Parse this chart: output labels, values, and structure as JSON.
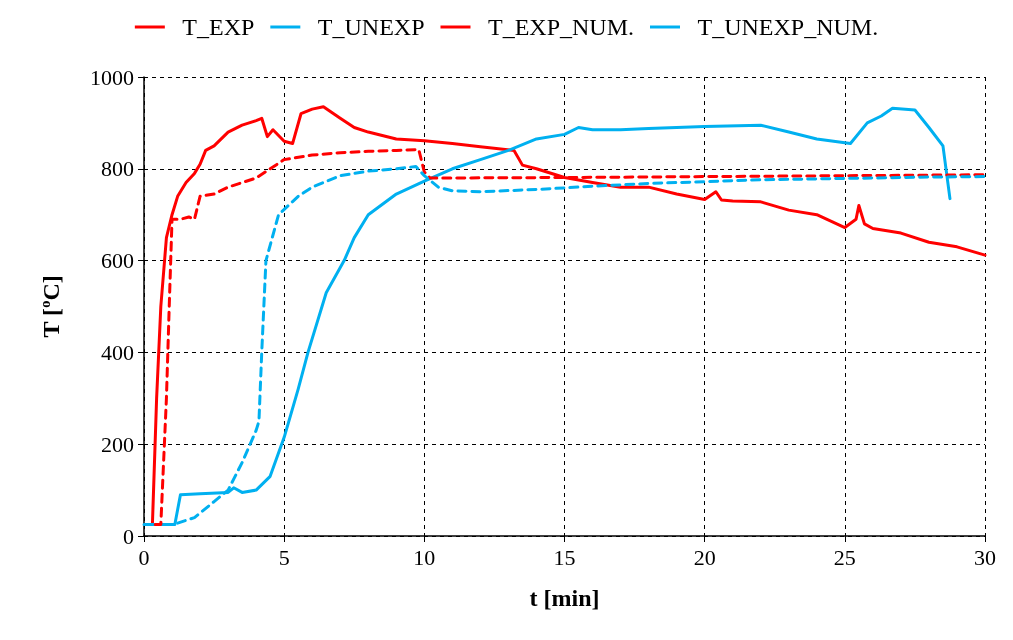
{
  "chart_data": {
    "type": "line",
    "xlabel": "t [min]",
    "ylabel": "T [$^{o}$C]",
    "xlim": [
      0,
      30
    ],
    "xticks": [
      0,
      5,
      10,
      15,
      20,
      25,
      30
    ],
    "ylim": [
      0,
      1000
    ],
    "yticks": [
      0,
      200,
      400,
      600,
      800,
      1000
    ],
    "grid": true,
    "legend": "top",
    "marker": "none",
    "series": [
      {
        "name": "T_EXP",
        "color": "#ff0000",
        "line_style": "solid",
        "x": [
          0.3,
          0.45,
          0.6,
          0.8,
          1.0,
          1.2,
          1.5,
          1.8,
          2.0,
          2.2,
          2.5,
          3.0,
          3.5,
          4.0,
          4.2,
          4.4,
          4.6,
          5.0,
          5.3,
          5.6,
          6.0,
          6.4,
          7.0,
          7.5,
          8.0,
          9.0,
          10.0,
          11.0,
          12.0,
          13.2,
          13.5,
          14.0,
          15.0,
          16.0,
          17.0,
          18.0,
          19.0,
          20.0,
          20.4,
          20.6,
          21.0,
          22.0,
          23.0,
          24.0,
          25.0,
          25.4,
          25.5,
          25.7,
          26.0,
          27.0,
          28.0,
          29.0,
          30.0
        ],
        "values": [
          25,
          300,
          500,
          650,
          700,
          740,
          770,
          790,
          810,
          840,
          850,
          880,
          895,
          905,
          910,
          870,
          885,
          860,
          855,
          920,
          930,
          935,
          910,
          890,
          880,
          865,
          861,
          855,
          848,
          840,
          808,
          800,
          781,
          770,
          760,
          760,
          745,
          733,
          750,
          732,
          730,
          728,
          710,
          700,
          672,
          690,
          720,
          680,
          670,
          660,
          640,
          630,
          612
        ]
      },
      {
        "name": "T_UNEXP",
        "color": "#00b0f0",
        "line_style": "solid",
        "x": [
          0,
          1.1,
          1.3,
          2.0,
          3.0,
          3.2,
          3.5,
          4.0,
          4.5,
          5.0,
          5.5,
          5.85,
          6.5,
          7.14,
          7.5,
          8.0,
          9.0,
          10.0,
          11.0,
          12.0,
          13.0,
          14.0,
          15.0,
          15.5,
          16.0,
          17.0,
          18.0,
          20.0,
          22.0,
          23.0,
          24.0,
          25.2,
          25.8,
          26.3,
          26.7,
          27.5,
          28.0,
          28.5,
          28.75
        ],
        "values": [
          25,
          25,
          90,
          92,
          95,
          105,
          95,
          100,
          130,
          215,
          320,
          400,
          530,
          600,
          650,
          700,
          745,
          773,
          800,
          820,
          840,
          865,
          875,
          890,
          885,
          885,
          888,
          892,
          895,
          880,
          865,
          855,
          900,
          915,
          932,
          928,
          890,
          850,
          735
        ]
      },
      {
        "name": "T_EXP_NUM.",
        "color": "#ff0000",
        "line_style": "dashed",
        "x": [
          0.4,
          0.6,
          0.8,
          0.9,
          1.0,
          1.3,
          1.6,
          1.8,
          2.0,
          2.5,
          3.0,
          3.5,
          4.0,
          4.5,
          5.0,
          6.0,
          7.0,
          8.0,
          9.0,
          9.8,
          10.0,
          10.2,
          11.0,
          15.0,
          20.0,
          25.0,
          30.0
        ],
        "values": [
          25,
          25,
          300,
          500,
          690,
          690,
          695,
          690,
          740,
          745,
          760,
          770,
          780,
          800,
          820,
          830,
          835,
          838,
          840,
          842,
          793,
          780,
          780,
          781,
          783,
          785,
          787
        ]
      },
      {
        "name": "T_UNEXP_NUM.",
        "color": "#00b0f0",
        "line_style": "dashed",
        "x": [
          1.2,
          1.8,
          2.5,
          3.0,
          3.5,
          4.0,
          4.1,
          4.2,
          4.35,
          4.8,
          5.5,
          6.0,
          7.0,
          8.0,
          9.0,
          9.7,
          10.0,
          10.5,
          11.0,
          12.0,
          14.0,
          16.0,
          18.0,
          20.0,
          22.0,
          24.0,
          26.0,
          28.0,
          30.0
        ],
        "values": [
          28,
          40,
          75,
          100,
          160,
          230,
          250,
          400,
          600,
          700,
          740,
          760,
          785,
          795,
          800,
          805,
          785,
          760,
          752,
          750,
          755,
          762,
          768,
          772,
          776,
          778,
          780,
          782,
          783
        ]
      }
    ]
  }
}
